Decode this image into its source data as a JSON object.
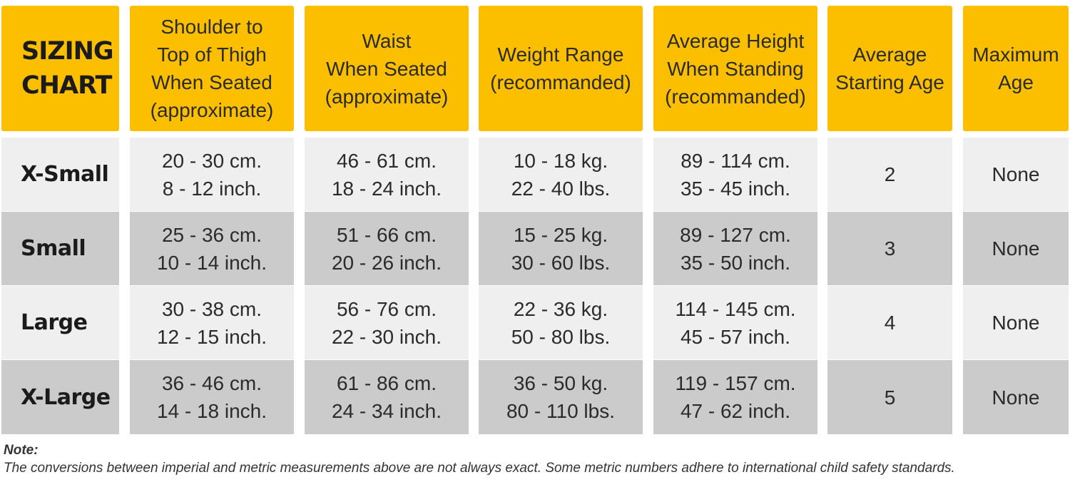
{
  "table": {
    "title": [
      "SIZING",
      "CHART"
    ],
    "headers": [
      [
        "Shoulder to",
        "Top of Thigh",
        "When Seated",
        "(approximate)"
      ],
      [
        "Waist",
        "When Seated",
        "(approximate)"
      ],
      [
        "Weight Range",
        "(recommanded)"
      ],
      [
        "Average Height",
        "When Standing",
        "(recommanded)"
      ],
      [
        "Average",
        "Starting Age"
      ],
      [
        "Maximum",
        "Age"
      ]
    ],
    "rows": [
      {
        "size": "X-Small",
        "cells": [
          [
            "20 - 30 cm.",
            "8 - 12 inch."
          ],
          [
            "46 - 61 cm.",
            "18 - 24 inch."
          ],
          [
            "10 - 18 kg.",
            "22 - 40 lbs."
          ],
          [
            "89 - 114 cm.",
            "35 - 45 inch."
          ],
          [
            "2"
          ],
          [
            "None"
          ]
        ]
      },
      {
        "size": "Small",
        "cells": [
          [
            "25 - 36 cm.",
            "10 - 14 inch."
          ],
          [
            "51 - 66 cm.",
            "20 - 26 inch."
          ],
          [
            "15 - 25 kg.",
            "30 - 60 lbs."
          ],
          [
            "89 - 127 cm.",
            "35 - 50 inch."
          ],
          [
            "3"
          ],
          [
            "None"
          ]
        ]
      },
      {
        "size": "Large",
        "cells": [
          [
            "30 - 38 cm.",
            "12 - 15 inch."
          ],
          [
            "56 - 76 cm.",
            "22 - 30 inch."
          ],
          [
            "22 - 36 kg.",
            "50 - 80 lbs."
          ],
          [
            "114 - 145 cm.",
            "45 - 57 inch."
          ],
          [
            "4"
          ],
          [
            "None"
          ]
        ]
      },
      {
        "size": "X-Large",
        "cells": [
          [
            "36 - 46 cm.",
            "14 - 18 inch."
          ],
          [
            "61 - 86 cm.",
            "24 - 34 inch."
          ],
          [
            "36 - 50 kg.",
            "80 - 110 lbs."
          ],
          [
            "119 - 157 cm.",
            "47 - 62 inch."
          ],
          [
            "5"
          ],
          [
            "None"
          ]
        ]
      }
    ]
  },
  "note": {
    "title": "Note:",
    "text": "The conversions between imperial and metric measurements above are not always exact. Some metric numbers adhere to international child safety standards."
  },
  "colors": {
    "header_bg": "#fbbf00",
    "row_light": "#efefef",
    "row_dark": "#cbcbcb"
  }
}
